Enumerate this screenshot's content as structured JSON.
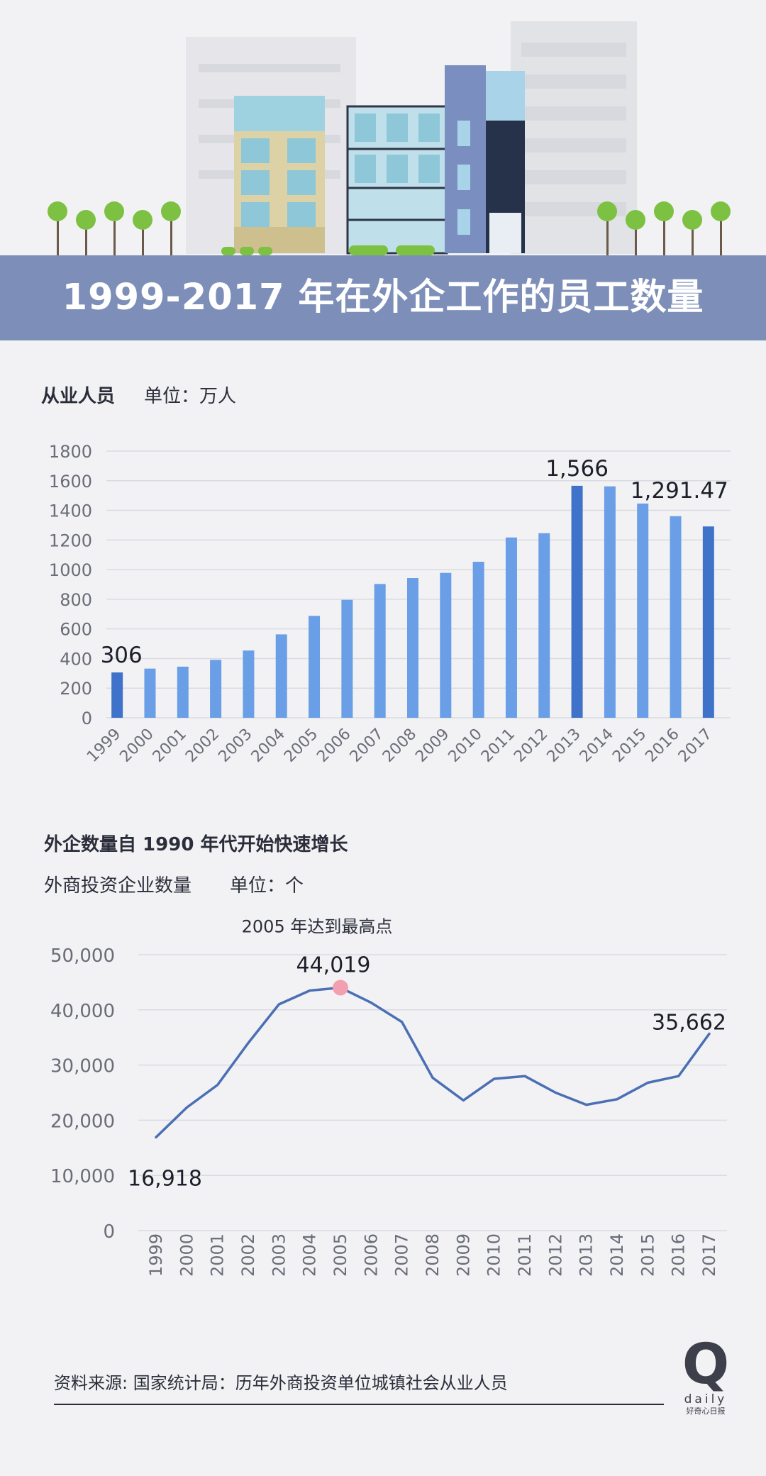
{
  "banner": {
    "title": "1999-2017 年在外企工作的员工数量"
  },
  "colors": {
    "banner": "#7d8fb9",
    "bar_normal": "#6a9ee6",
    "bar_highlight": "#3f73c9",
    "line": "#4a6fb4",
    "peak_marker": "#f2a0b0",
    "grid": "#d9dbe2",
    "text": "#2b2e3a",
    "axis_text": "#6a6d78"
  },
  "chart1_header": {
    "title": "从业人员",
    "unit": "单位：万人"
  },
  "chart2_header": {
    "title": "外企数量自 1990 年代开始快速增长",
    "subtitle": "外商投资企业数量",
    "unit": "单位：个"
  },
  "source": "资料来源: 国家统计局：历年外商投资单位城镇社会从业人员",
  "logo": {
    "mark": "Q",
    "word": "daily",
    "tagline": "好奇心日报"
  },
  "chart_data": [
    {
      "type": "bar",
      "title": "从业人员",
      "ylabel": "单位：万人",
      "categories": [
        "1999",
        "2000",
        "2001",
        "2002",
        "2003",
        "2004",
        "2005",
        "2006",
        "2007",
        "2008",
        "2009",
        "2010",
        "2011",
        "2012",
        "2013",
        "2014",
        "2015",
        "2016",
        "2017"
      ],
      "values": [
        306,
        332,
        345,
        391,
        454,
        563,
        688,
        796,
        903,
        943,
        978,
        1053,
        1217,
        1246,
        1566,
        1562,
        1446,
        1361,
        1291.47
      ],
      "highlight": [
        "1999",
        "2013",
        "2017"
      ],
      "annotations": [
        {
          "category": "1999",
          "text": "306"
        },
        {
          "category": "2013",
          "text": "1,566"
        },
        {
          "category": "2017",
          "text": "1,291.47"
        }
      ],
      "yticks": [
        "0",
        "200",
        "400",
        "600",
        "800",
        "1000",
        "1200",
        "1400",
        "1600",
        "1800"
      ],
      "ylim": [
        0,
        1800
      ],
      "grid": true
    },
    {
      "type": "line",
      "title": "外商投资企业数量",
      "ylabel": "单位：个",
      "x": [
        "1999",
        "2000",
        "2001",
        "2002",
        "2003",
        "2004",
        "2005",
        "2006",
        "2007",
        "2008",
        "2009",
        "2010",
        "2011",
        "2012",
        "2013",
        "2014",
        "2015",
        "2016",
        "2017"
      ],
      "values": [
        16918,
        22300,
        26400,
        34000,
        41000,
        43500,
        44019,
        41300,
        37800,
        27700,
        23600,
        27500,
        28000,
        25000,
        22800,
        23800,
        26800,
        28000,
        35662
      ],
      "annotations": [
        {
          "x": "1999",
          "text": "16,918"
        },
        {
          "x": "2005",
          "text": "44,019",
          "note": "2005 年达到最高点"
        },
        {
          "x": "2017",
          "text": "35,662"
        }
      ],
      "yticks": [
        "0",
        "10,000",
        "20,000",
        "30,000",
        "40,000",
        "50,000"
      ],
      "ylim": [
        0,
        50000
      ],
      "grid": true
    }
  ]
}
